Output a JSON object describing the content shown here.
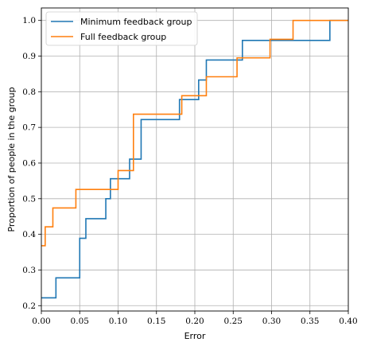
{
  "chart_data": {
    "type": "line",
    "step": true,
    "xlabel": "Error",
    "ylabel": "Proportion of people in the group",
    "xlim": [
      0.0,
      0.4
    ],
    "ylim": [
      0.185,
      1.035
    ],
    "xticks": [
      0.0,
      0.05,
      0.1,
      0.15,
      0.2,
      0.25,
      0.3,
      0.35,
      0.4
    ],
    "xtick_labels": [
      "0.00",
      "0.05",
      "0.10",
      "0.15",
      "0.20",
      "0.25",
      "0.30",
      "0.35",
      "0.40"
    ],
    "yticks": [
      0.2,
      0.3,
      0.4,
      0.5,
      0.6,
      0.7,
      0.8,
      0.9,
      1.0
    ],
    "ytick_labels": [
      "0.2",
      "0.3",
      "0.4",
      "0.5",
      "0.6",
      "0.7",
      "0.8",
      "0.9",
      "1.0"
    ],
    "grid": true,
    "legend_position": "top-left",
    "series": [
      {
        "name": "Minimum feedback group",
        "color": "#1f77b4",
        "x": [
          0.0,
          0.019,
          0.045,
          0.05,
          0.058,
          0.075,
          0.084,
          0.09,
          0.105,
          0.115,
          0.13,
          0.18,
          0.205,
          0.215,
          0.262,
          0.376,
          0.4
        ],
        "y": [
          0.222,
          0.278,
          0.278,
          0.389,
          0.444,
          0.444,
          0.5,
          0.556,
          0.556,
          0.611,
          0.722,
          0.778,
          0.833,
          0.889,
          0.944,
          1.0,
          1.0
        ]
      },
      {
        "name": "Full feedback group",
        "color": "#ff7f0e",
        "x": [
          0.0,
          0.005,
          0.015,
          0.045,
          0.075,
          0.1,
          0.108,
          0.12,
          0.178,
          0.183,
          0.215,
          0.225,
          0.255,
          0.265,
          0.298,
          0.328,
          0.4
        ],
        "y": [
          0.368,
          0.421,
          0.474,
          0.526,
          0.526,
          0.579,
          0.579,
          0.737,
          0.737,
          0.789,
          0.842,
          0.842,
          0.895,
          0.895,
          0.947,
          1.0,
          1.0
        ]
      }
    ]
  }
}
